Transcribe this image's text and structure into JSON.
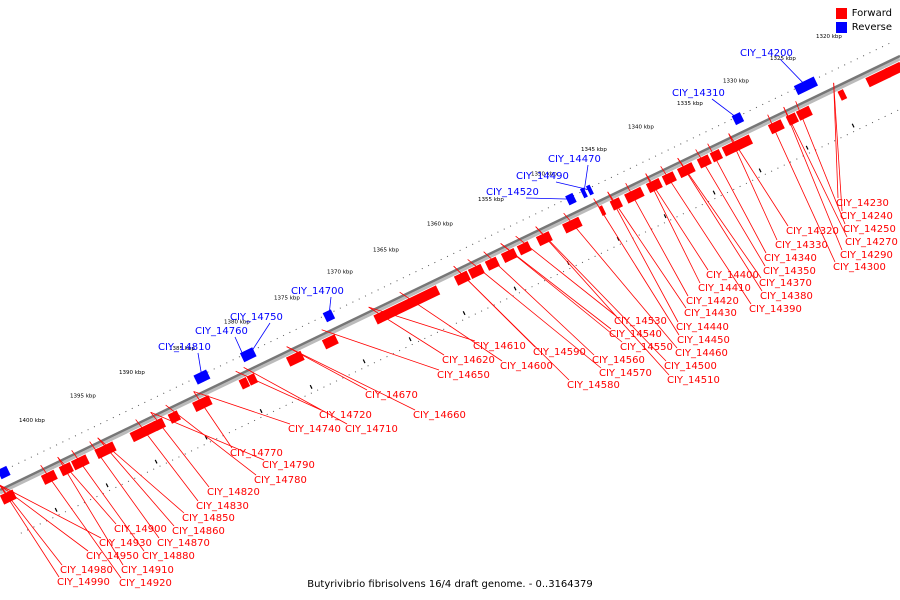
{
  "legend": {
    "items": [
      {
        "label": "Forward",
        "color": "#ff0000"
      },
      {
        "label": "Reverse",
        "color": "#0000ff"
      }
    ]
  },
  "caption": "Butyrivibrio fibrisolvens 16/4 draft genome. - 0..3164379",
  "axis": {
    "ticks": [
      "1320 kbp",
      "1325 kbp",
      "1330 kbp",
      "1335 kbp",
      "1340 kbp",
      "1345 kbp",
      "1350 kbp",
      "1355 kbp",
      "1360 kbp",
      "1365 kbp",
      "1370 kbp",
      "1375 kbp",
      "1380 kbp",
      "1385 kbp",
      "1390 kbp",
      "1395 kbp",
      "1400 kbp"
    ]
  },
  "colors": {
    "forward": "#ff0000",
    "reverse": "#0000ff",
    "backbone": "#777777"
  },
  "reverse_labels": [
    "CIY_14200",
    "CIY_14310",
    "CIY_14470",
    "CIY_14490",
    "CIY_14520",
    "CIY_14700",
    "CIY_14750",
    "CIY_14760",
    "CIY_14810"
  ],
  "forward_labels": [
    "CIY_14230",
    "CIY_14240",
    "CIY_14250",
    "CIY_14270",
    "CIY_14290",
    "CIY_14300",
    "CIY_14320",
    "CIY_14330",
    "CIY_14340",
    "CIY_14350",
    "CIY_14370",
    "CIY_14380",
    "CIY_14390",
    "CIY_14400",
    "CIY_14410",
    "CIY_14420",
    "CIY_14430",
    "CIY_14440",
    "CIY_14450",
    "CIY_14460",
    "CIY_14500",
    "CIY_14510",
    "CIY_14530",
    "CIY_14540",
    "CIY_14550",
    "CIY_14560",
    "CIY_14570",
    "CIY_14580",
    "CIY_14590",
    "CIY_14600",
    "CIY_14610",
    "CIY_14620",
    "CIY_14650",
    "CIY_14660",
    "CIY_14670",
    "CIY_14710",
    "CIY_14720",
    "CIY_14740",
    "CIY_14770",
    "CIY_14780",
    "CIY_14790",
    "CIY_14820",
    "CIY_14830",
    "CIY_14850",
    "CIY_14860",
    "CIY_14870",
    "CIY_14880",
    "CIY_14900",
    "CIY_14910",
    "CIY_14920",
    "CIY_14930",
    "CIY_14950",
    "CIY_14980",
    "CIY_14990"
  ]
}
